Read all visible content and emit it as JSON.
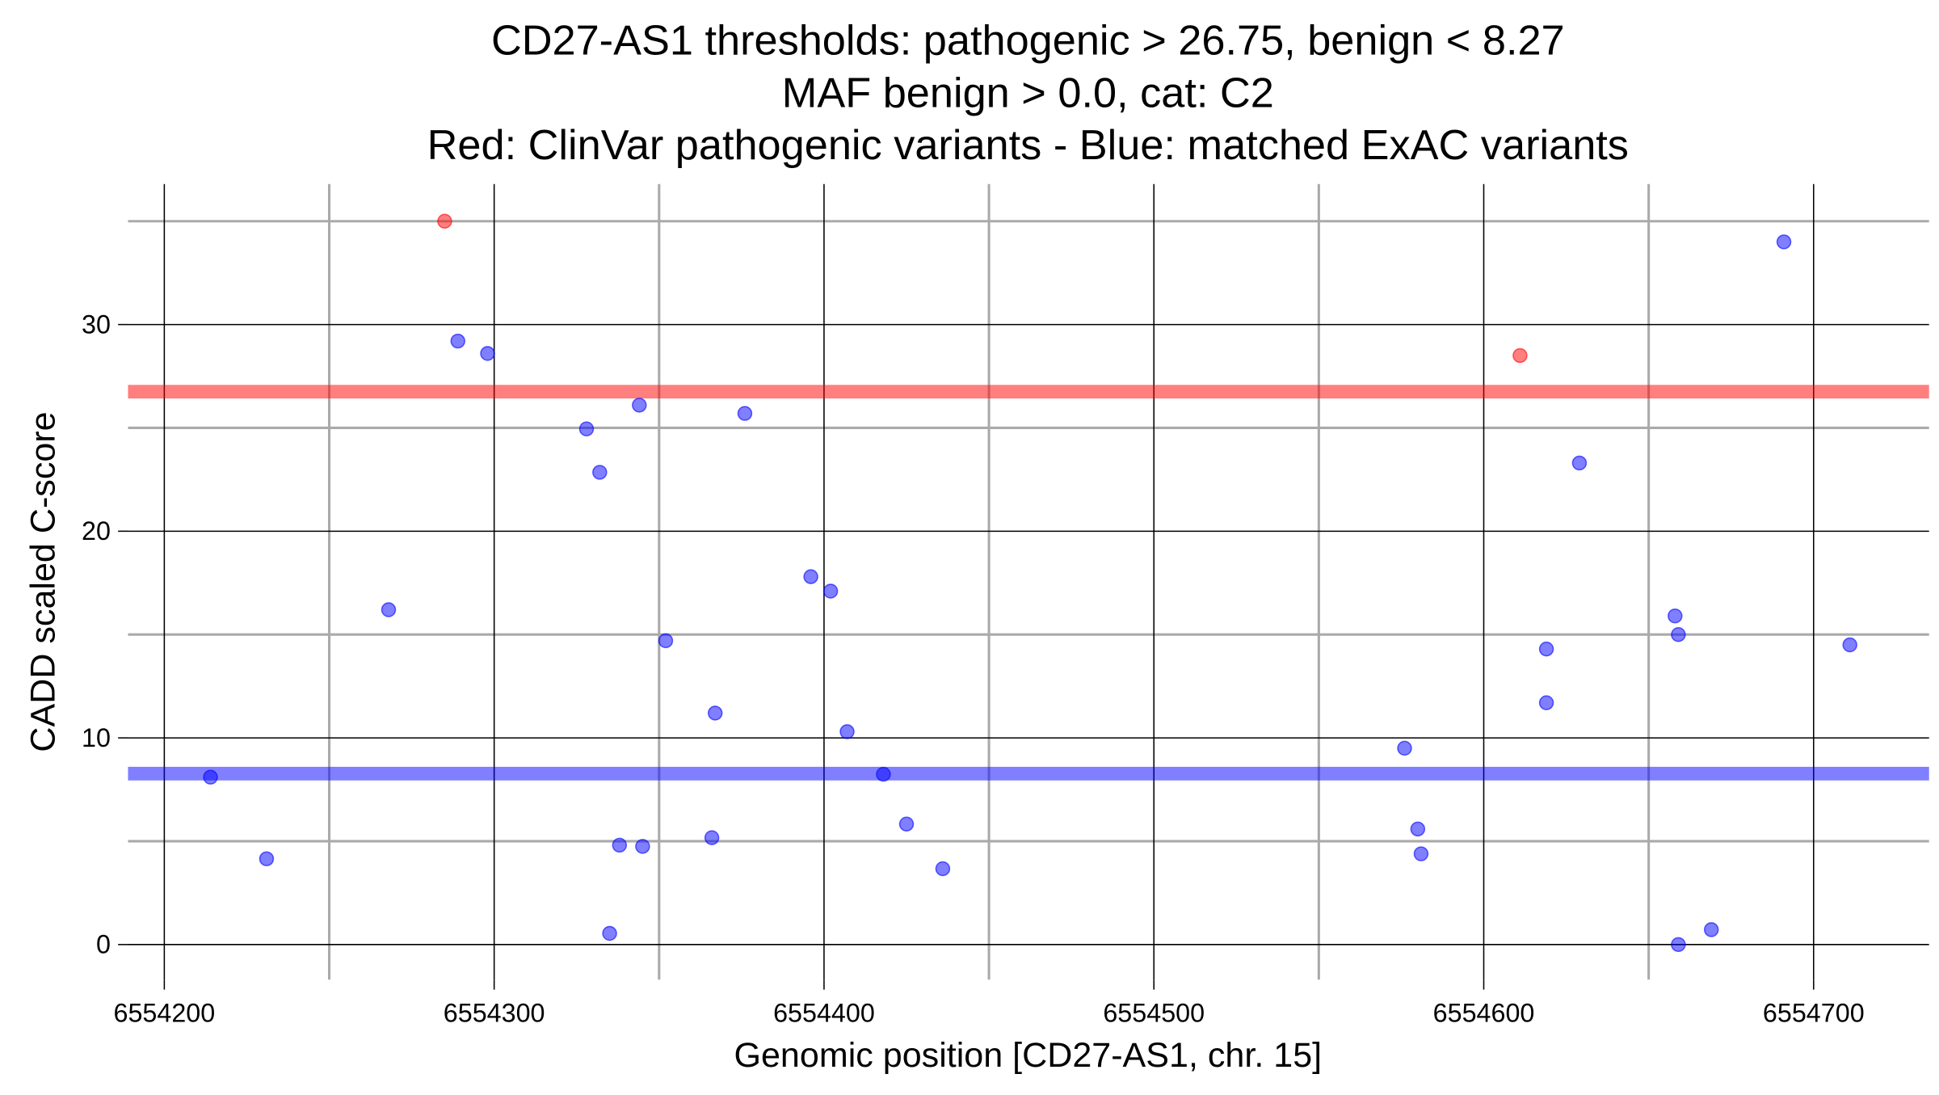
{
  "chart_data": {
    "type": "scatter",
    "title_lines": [
      "CD27-AS1 thresholds: pathogenic > 26.75, benign < 8.27",
      "MAF benign > 0.0, cat: C2",
      "Red: ClinVar pathogenic variants - Blue: matched ExAC variants"
    ],
    "x_label": "Genomic position [CD27-AS1, chr. 15]",
    "y_label": "CADD scaled C-score",
    "xlim": [
      6554189,
      6554735
    ],
    "ylim": [
      -1.7,
      36.8
    ],
    "xticks": [
      6554200,
      6554300,
      6554400,
      6554500,
      6554600,
      6554700
    ],
    "yticks": [
      0,
      10,
      20,
      30
    ],
    "x_minor_ticks": [
      6554250,
      6554350,
      6554450,
      6554550,
      6554650
    ],
    "y_minor_ticks": [
      5,
      15,
      25,
      35
    ],
    "grid": true,
    "hlines": [
      {
        "value": 26.75,
        "color": "#ff0000"
      },
      {
        "value": 8.27,
        "color": "#0000ff"
      }
    ],
    "series": [
      {
        "color": "#ff0000",
        "x": [
          6554285,
          6554611
        ],
        "values": [
          35.0,
          28.5
        ]
      },
      {
        "color": "#0000ff",
        "x": [
          6554214,
          6554231,
          6554268,
          6554289,
          6554298,
          6554328,
          6554332,
          6554335,
          6554338,
          6554344,
          6554345,
          6554352,
          6554366,
          6554367,
          6554376,
          6554396,
          6554402,
          6554407,
          6554418,
          6554425,
          6554436,
          6554576,
          6554580,
          6554581,
          6554619,
          6554619,
          6554629,
          6554658,
          6554659,
          6554659,
          6554669,
          6554691,
          6554711
        ],
        "values": [
          8.1,
          4.15,
          16.2,
          29.2,
          28.6,
          24.95,
          22.85,
          0.54,
          4.81,
          26.1,
          4.75,
          14.7,
          5.17,
          11.2,
          25.7,
          17.8,
          17.1,
          10.3,
          8.24,
          5.83,
          3.67,
          9.5,
          5.59,
          4.39,
          14.3,
          11.7,
          23.3,
          15.9,
          15.0,
          0.0,
          0.72,
          34.0,
          14.5
        ]
      }
    ]
  }
}
